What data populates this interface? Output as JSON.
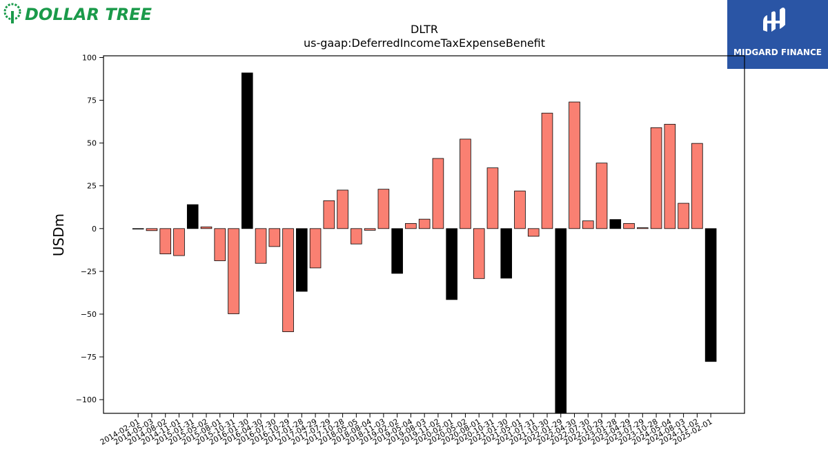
{
  "logos": {
    "left_text": "DOLLAR TREE",
    "right_text": "MIDGARD FINANCE",
    "left_color": "#1a9a4a",
    "right_bg": "#2a55a5"
  },
  "chart_data": {
    "type": "bar",
    "title": "DLTR",
    "subtitle": "us-gaap:DeferredIncomeTaxExpenseBenefit",
    "xlabel": "",
    "ylabel": "USDm",
    "ylim": [
      -108,
      101
    ],
    "yticks": [
      100,
      75,
      50,
      25,
      0,
      -25,
      -50,
      -75,
      -100
    ],
    "ytick_labels": [
      "100",
      "75",
      "50",
      "25",
      "0",
      "−25",
      "−50",
      "−75",
      "−100"
    ],
    "grid": false,
    "legend": "none",
    "colors": {
      "quarter": "#fa8072",
      "fiscal_year": "#000000",
      "edge": "#000000"
    },
    "categories": [
      "2014-02-01",
      "2014-05-03",
      "2014-08-02",
      "2014-11-01",
      "2015-01-31",
      "2015-05-02",
      "2015-08-01",
      "2015-10-31",
      "2016-01-30",
      "2016-04-30",
      "2016-07-30",
      "2016-10-29",
      "2017-01-28",
      "2017-04-29",
      "2017-07-29",
      "2017-10-28",
      "2018-05-05",
      "2018-08-04",
      "2018-11-03",
      "2019-02-02",
      "2019-05-04",
      "2019-08-03",
      "2019-11-02",
      "2020-02-01",
      "2020-05-02",
      "2020-08-01",
      "2020-10-31",
      "2021-01-30",
      "2021-05-01",
      "2021-07-31",
      "2021-10-30",
      "2022-01-29",
      "2022-04-30",
      "2022-07-30",
      "2022-10-29",
      "2023-01-28",
      "2023-04-29",
      "2023-07-29",
      "2023-10-28",
      "2024-05-04",
      "2024-08-03",
      "2024-11-02",
      "2025-02-01"
    ],
    "values": [
      -0.3,
      -1.2,
      -14.8,
      -15.8,
      14.0,
      1.0,
      -18.8,
      -49.8,
      91.0,
      -20.3,
      -10.5,
      -60.3,
      -36.7,
      -23.0,
      16.3,
      22.5,
      -9.0,
      -1.0,
      23.0,
      -26.2,
      3.0,
      5.5,
      41.0,
      -41.5,
      52.3,
      -29.2,
      35.5,
      -29.0,
      22.0,
      -4.5,
      67.5,
      -108.0,
      74.0,
      4.5,
      38.3,
      5.3,
      3.0,
      0.5,
      59.0,
      61.0,
      14.8,
      49.8,
      -77.7
    ],
    "fiscal_year": [
      false,
      false,
      false,
      false,
      true,
      false,
      false,
      false,
      true,
      false,
      false,
      false,
      true,
      false,
      false,
      false,
      false,
      false,
      false,
      true,
      false,
      false,
      false,
      true,
      false,
      false,
      false,
      true,
      false,
      false,
      false,
      true,
      false,
      false,
      false,
      true,
      false,
      false,
      false,
      false,
      false,
      false,
      true
    ]
  }
}
